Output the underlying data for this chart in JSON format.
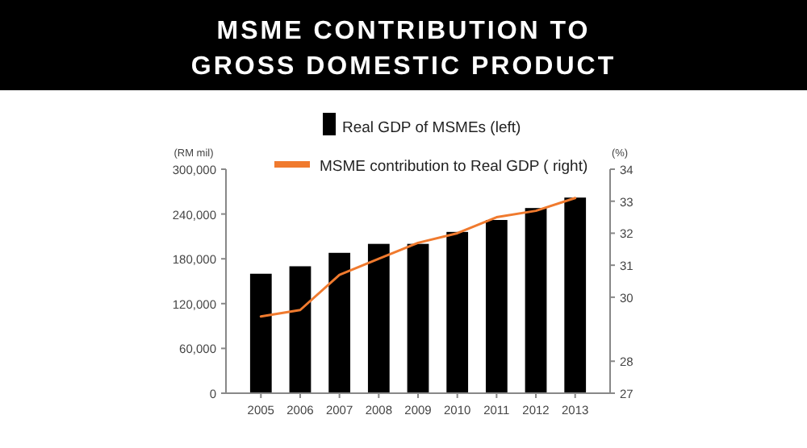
{
  "chart_data": {
    "type": "bar",
    "title": "MSME CONTRIBUTION TO\nGROSS DOMESTIC PRODUCT",
    "ylabel": "(RM mil)",
    "y2label": "(%)",
    "categories": [
      "2005",
      "2006",
      "2007",
      "2008",
      "2009",
      "2010",
      "2011",
      "2012",
      "2013"
    ],
    "series": [
      {
        "name": "Real GDP of MSMEs (left)",
        "color": "#000000",
        "values": [
          160000,
          170000,
          188000,
          200000,
          200000,
          216000,
          232000,
          248000,
          262000
        ]
      },
      {
        "name": "MSME contribution to Real GDP ( right)",
        "type": "line",
        "axis": "y2",
        "color": "#f07a2e",
        "values": [
          29.4,
          29.6,
          30.7,
          31.2,
          31.7,
          32.0,
          32.5,
          32.7,
          33.1
        ]
      }
    ],
    "ylim": [
      0,
      300000
    ],
    "yticks": [
      {
        "value": 0,
        "label": "0"
      },
      {
        "value": 60000,
        "label": "60,000"
      },
      {
        "value": 120000,
        "label": "120,000"
      },
      {
        "value": 180000,
        "label": "180,000"
      },
      {
        "value": 240000,
        "label": "240,000"
      },
      {
        "value": 300000,
        "label": "300,000"
      }
    ],
    "y2lim": [
      27,
      34
    ],
    "y2ticks": [
      27,
      28,
      30,
      31,
      32,
      33,
      34
    ],
    "legend": "top",
    "marker": "none",
    "line_style": "solid"
  }
}
